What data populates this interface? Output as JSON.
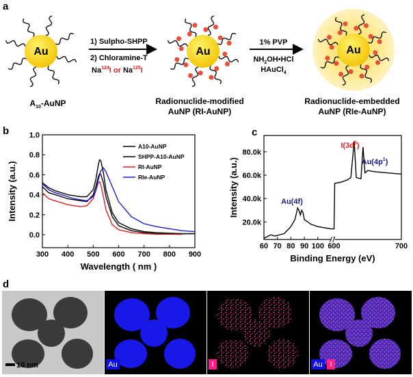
{
  "panel_a": {
    "label": "a",
    "np_core": [
      "Au",
      "Au",
      "Au"
    ],
    "start_name": [
      "A",
      "10",
      "-AuNP"
    ],
    "step1": [
      "1) Sulpho-SHPP",
      "2) Chloramine-T"
    ],
    "step1_isotopes": [
      "Na",
      "124",
      "I",
      " or ",
      "Na",
      "125",
      "I"
    ],
    "step2": [
      "1% PVP",
      "NH",
      "2",
      "OH•HCl",
      "HAuCl",
      "4"
    ],
    "middle_name": [
      "Radionuclide-modified",
      "AuNP (RI-AuNP)"
    ],
    "end_name": [
      "Radionuclide-embedded",
      "AuNP (RIe-AuNP)"
    ]
  },
  "chart_data": [
    {
      "type": "line",
      "panel": "b",
      "x_label": "Wavelength ( nm )",
      "y_label": "Intensity (a.u.)",
      "x": [
        300,
        325,
        350,
        375,
        400,
        425,
        450,
        475,
        500,
        510,
        520,
        525,
        530,
        540,
        550,
        575,
        600,
        650,
        700,
        750,
        800,
        850,
        900
      ],
      "series": [
        {
          "name": "A10-AuNP",
          "color": "#000000",
          "values": [
            0.52,
            0.47,
            0.44,
            0.42,
            0.4,
            0.39,
            0.38,
            0.38,
            0.45,
            0.55,
            0.7,
            0.75,
            0.74,
            0.62,
            0.45,
            0.22,
            0.12,
            0.06,
            0.03,
            0.02,
            0.015,
            0.01,
            0.01
          ]
        },
        {
          "name": "SHPP-A10-AuNP",
          "color": "#000000",
          "values": [
            0.48,
            0.42,
            0.4,
            0.38,
            0.36,
            0.35,
            0.34,
            0.33,
            0.4,
            0.48,
            0.58,
            0.61,
            0.6,
            0.52,
            0.38,
            0.18,
            0.09,
            0.04,
            0.02,
            0.01,
            0.01,
            0.01,
            0.01
          ]
        },
        {
          "name": "RI-AuNP",
          "color": "#e02020",
          "values": [
            0.42,
            0.36,
            0.34,
            0.32,
            0.3,
            0.29,
            0.28,
            0.29,
            0.36,
            0.44,
            0.52,
            0.53,
            0.5,
            0.38,
            0.25,
            0.1,
            0.05,
            0.02,
            0.01,
            0.005,
            0.005,
            0.003,
            null
          ]
        },
        {
          "name": "RIe-AuNP",
          "color": "#1a1ad0",
          "values": [
            0.51,
            0.45,
            0.42,
            0.4,
            0.38,
            0.36,
            0.35,
            0.34,
            0.38,
            0.44,
            0.55,
            0.6,
            0.64,
            0.67,
            0.63,
            0.48,
            0.33,
            0.18,
            0.11,
            0.08,
            0.06,
            0.04,
            0.03
          ]
        }
      ],
      "xlim": [
        300,
        900
      ],
      "xticks": [
        300,
        400,
        500,
        600,
        700,
        800,
        900
      ],
      "ylim": [
        -0.13,
        1.0
      ],
      "yticks": [
        {
          "value": 0,
          "label": "0.0"
        },
        0.2,
        0.4,
        0.6,
        0.8,
        {
          "value": 1,
          "label": "1.0"
        }
      ],
      "legend": "upper right"
    },
    {
      "type": "line",
      "panel": "c",
      "x_label": "Binding Energy (eV)",
      "y_label": "Intensity (a.u.)",
      "x": [
        60,
        65,
        68,
        75,
        80,
        83,
        85,
        86,
        87,
        88,
        89,
        90,
        95,
        100,
        105,
        110,
        600,
        601,
        610,
        620,
        625,
        630,
        633,
        640,
        643,
        646,
        650,
        660,
        680,
        700
      ],
      "series": [
        {
          "color": "#000000",
          "values": [
            6000,
            9000,
            8000,
            10000,
            16000,
            22000,
            32000,
            30000,
            26000,
            30000,
            28000,
            22000,
            18000,
            16000,
            15000,
            14000,
            14000,
            53000,
            54000,
            56000,
            58000,
            89000,
            58000,
            57000,
            84000,
            62000,
            64000,
            63000,
            62000,
            61000
          ]
        }
      ],
      "xlim": [
        60,
        700
      ],
      "xbreak": [
        110,
        600
      ],
      "xticks": [
        60,
        70,
        80,
        90,
        100,
        600,
        700
      ],
      "ylim": [
        5000,
        94000
      ],
      "yticks": [
        {
          "value": 20000,
          "label": "20.0k"
        },
        {
          "value": 40000,
          "label": "40.0k"
        },
        {
          "value": 60000,
          "label": "60.0k"
        },
        {
          "value": 80000,
          "label": "80.0k"
        }
      ],
      "annotations": [
        "Au(4f)",
        [
          "I(3d",
          "5",
          ")"
        ],
        [
          "Au(4p",
          "1",
          ")"
        ]
      ]
    }
  ],
  "panel_d": {
    "label": "d",
    "scale_bar": "10 nm",
    "maps": [
      "Au",
      "I",
      "Au",
      "I"
    ]
  }
}
